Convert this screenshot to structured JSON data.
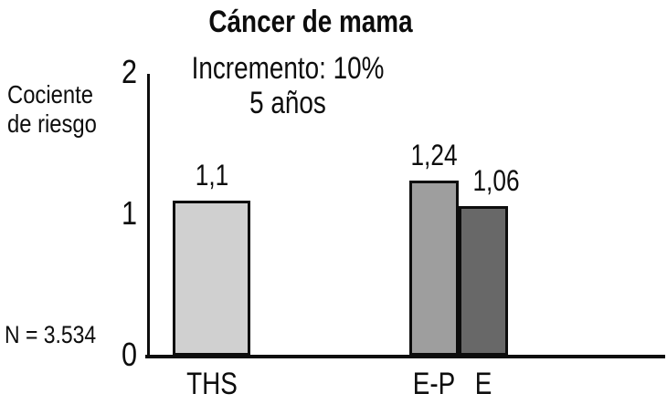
{
  "figure": {
    "background": "#ffffff",
    "axis_color": "#0d0d0d",
    "text_color": "#0d0d0d"
  },
  "chart_data": {
    "type": "bar",
    "title": "Cáncer de mama",
    "annotations": [
      "Incremento: 10%",
      "5 años"
    ],
    "ylabel": "Cociente de riesgo",
    "ylabel_lines": [
      "Cociente",
      "de riesgo"
    ],
    "sample_size_label": "N = 3.534",
    "categories": [
      "THS",
      "E-P",
      "E"
    ],
    "values": [
      1.1,
      1.24,
      1.06
    ],
    "value_labels": [
      "1,1",
      "1,24",
      "1,06"
    ],
    "bar_colors": [
      "#d0d0d0",
      "#9e9e9e",
      "#686868"
    ],
    "bar_border_color": "#0d0d0d",
    "ylim": [
      0,
      2
    ],
    "yticks": [
      0,
      1,
      2
    ],
    "ytick_labels": [
      "0",
      "1",
      "2"
    ],
    "grid": false,
    "legend_position": "none"
  }
}
